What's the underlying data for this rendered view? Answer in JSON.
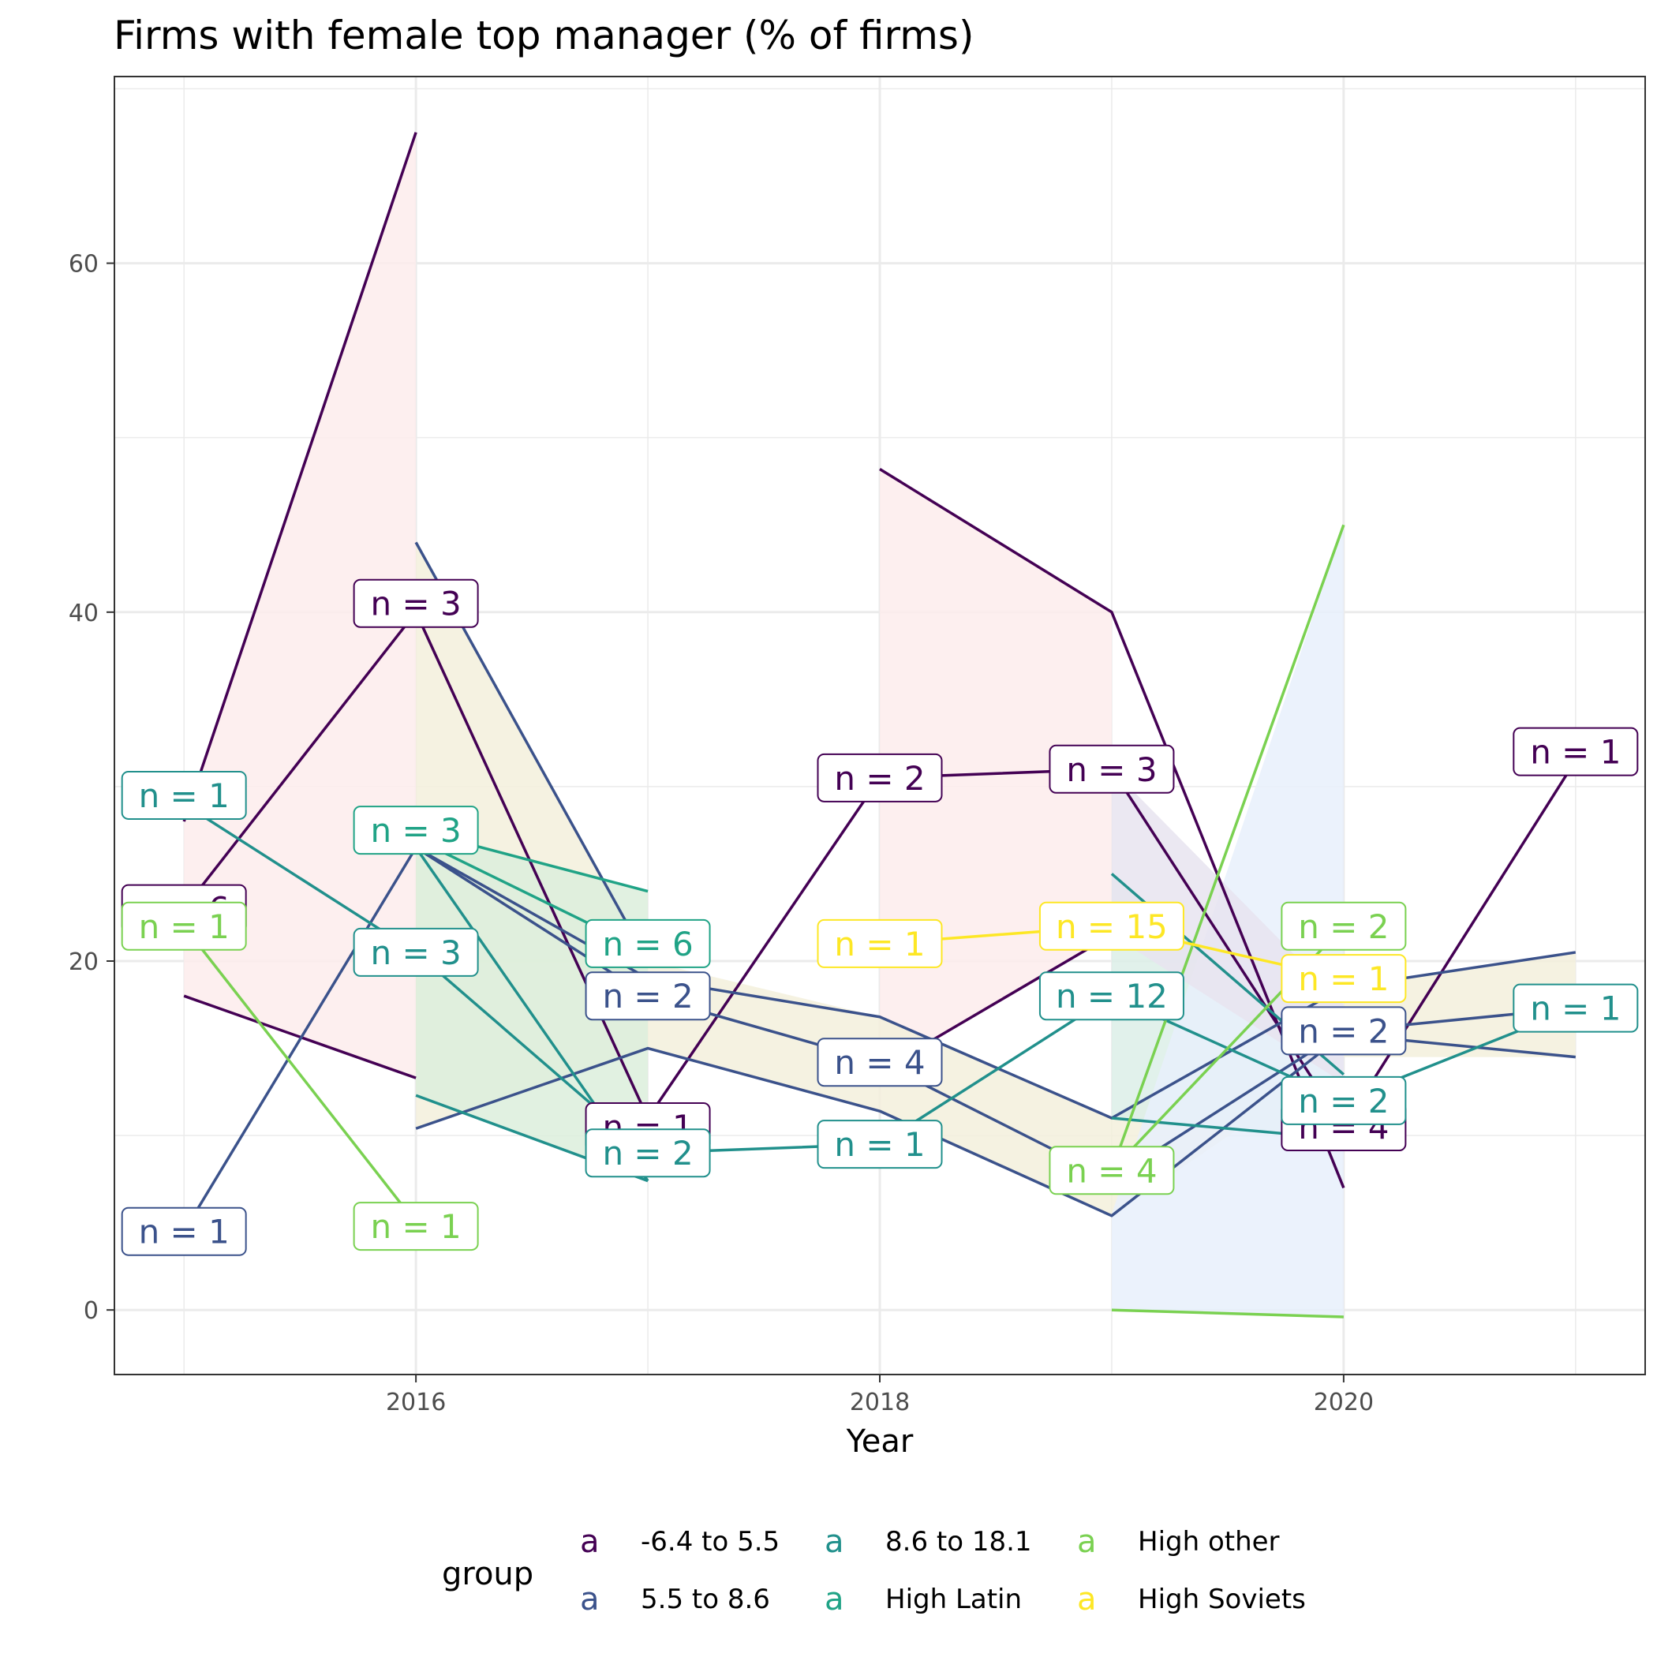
{
  "chart_data": {
    "type": "line",
    "title": "Firms with female top manager (% of firms)",
    "xlabel": "Year",
    "ylabel": "",
    "xlim": [
      2014.7,
      2021.3
    ],
    "ylim": [
      -3.7,
      70.7
    ],
    "x_ticks": [
      "2016",
      "2018",
      "2020"
    ],
    "y_ticks": [
      "0",
      "20",
      "40",
      "60"
    ],
    "grid": true,
    "legend": {
      "title": "group",
      "position": "bottom",
      "key_glyph": "a",
      "entries": [
        "-6.4 to 5.5",
        "5.5 to 8.6",
        "8.6 to 18.1",
        "High Latin",
        "High other",
        "High Soviets"
      ]
    },
    "ribbons": [
      {
        "group": "-6.4 to 5.5",
        "color": "#fdecec",
        "points": [
          [
            2015,
            18.0,
            28.0
          ],
          [
            2016,
            13.3,
            67.5
          ]
        ]
      },
      {
        "group": "-6.4 to 5.5",
        "color": "#fdecec",
        "points": [
          [
            2018,
            13.7,
            48.2
          ],
          [
            2019,
            21.5,
            40.0
          ]
        ]
      },
      {
        "group": "5.5 to 8.6",
        "color": "#f3f0dc",
        "points": [
          [
            2016,
            10.4,
            44.0
          ],
          [
            2017,
            15.0,
            20.0
          ],
          [
            2018,
            11.4,
            16.8
          ],
          [
            2019,
            5.4,
            11.0
          ],
          [
            2020,
            14.5,
            18.5
          ],
          [
            2021,
            14.5,
            20.5
          ]
        ]
      },
      {
        "group": "8.6 to 18.1",
        "color": "#dcefe8",
        "points": [
          [
            2019,
            11.0,
            25.0
          ],
          [
            2020,
            9.8,
            13.5
          ]
        ]
      },
      {
        "group": "High Latin",
        "color": "#dcefdc",
        "points": [
          [
            2016,
            12.3,
            27.5
          ],
          [
            2017,
            7.4,
            24.0
          ]
        ]
      },
      {
        "group": "High other",
        "color": "#e8f0fc",
        "points": [
          [
            2019,
            0.0,
            5.5
          ],
          [
            2020,
            -0.4,
            45.0
          ]
        ]
      },
      {
        "group": "-6.4 to 5.5",
        "color": "#e8e4f0",
        "points": [
          [
            2019,
            21.5,
            31.0
          ],
          [
            2020,
            13.0,
            17.5
          ]
        ]
      }
    ],
    "series": [
      {
        "name": "-6.4 to 5.5",
        "color": "#440154",
        "lines": [
          [
            [
              2015,
              18.0
            ],
            [
              2016,
              13.3
            ]
          ],
          [
            [
              2015,
              28.0
            ],
            [
              2016,
              67.5
            ]
          ],
          [
            [
              2015,
              23.0
            ],
            [
              2016,
              40.0
            ],
            [
              2017,
              11.0
            ],
            [
              2018,
              30.5
            ],
            [
              2019,
              31.0
            ],
            [
              2020,
              10.5
            ],
            [
              2021,
              31.5
            ]
          ],
          [
            [
              2018,
              48.2
            ],
            [
              2019,
              40.0
            ],
            [
              2020,
              7.0
            ]
          ],
          [
            [
              2018,
              13.7
            ],
            [
              2019,
              21.5
            ]
          ]
        ]
      },
      {
        "name": "5.5 to 8.6",
        "color": "#3b528b",
        "lines": [
          [
            [
              2015,
              4.5
            ],
            [
              2016,
              26.5
            ],
            [
              2017,
              19.0
            ],
            [
              2018,
              16.8
            ],
            [
              2019,
              11.0
            ],
            [
              2020,
              18.5
            ],
            [
              2021,
              20.5
            ]
          ],
          [
            [
              2016,
              44.0
            ],
            [
              2017,
              20.0
            ]
          ],
          [
            [
              2016,
              10.4
            ],
            [
              2017,
              15.0
            ],
            [
              2018,
              11.4
            ],
            [
              2019,
              5.4
            ],
            [
              2020,
              15.8
            ],
            [
              2021,
              14.5
            ]
          ],
          [
            [
              2016,
              26.5
            ],
            [
              2017,
              18.0
            ],
            [
              2018,
              14.2
            ],
            [
              2019,
              7.5
            ],
            [
              2020,
              16.0
            ],
            [
              2021,
              17.3
            ]
          ]
        ]
      },
      {
        "name": "8.6 to 18.1",
        "color": "#21908c",
        "lines": [
          [
            [
              2015,
              29.0
            ],
            [
              2016,
              20.5
            ],
            [
              2017,
              9.0
            ],
            [
              2018,
              9.5
            ],
            [
              2019,
              18.0
            ],
            [
              2020,
              12.0
            ],
            [
              2021,
              17.3
            ]
          ],
          [
            [
              2016,
              26.5
            ],
            [
              2017,
              7.4
            ]
          ],
          [
            [
              2016,
              12.3
            ],
            [
              2017,
              7.4
            ]
          ],
          [
            [
              2019,
              25.0
            ],
            [
              2020,
              13.5
            ]
          ],
          [
            [
              2019,
              11.0
            ],
            [
              2020,
              9.8
            ]
          ]
        ]
      },
      {
        "name": "High Latin",
        "color": "#20a386",
        "lines": [
          [
            [
              2016,
              27.5
            ],
            [
              2017,
              24.0
            ]
          ],
          [
            [
              2016,
              27.0
            ],
            [
              2017,
              20.5
            ]
          ]
        ]
      },
      {
        "name": "High other",
        "color": "#7ad151",
        "lines": [
          [
            [
              2015,
              22.0
            ],
            [
              2016,
              5.0
            ]
          ],
          [
            [
              2019,
              0.0
            ],
            [
              2020,
              -0.4
            ]
          ],
          [
            [
              2019,
              8.0
            ],
            [
              2020,
              45.0
            ]
          ],
          [
            [
              2019,
              8.0
            ],
            [
              2020,
              22.0
            ]
          ]
        ]
      },
      {
        "name": "High Soviets",
        "color": "#fde725",
        "lines": [
          [
            [
              2018,
              21.0
            ],
            [
              2019,
              22.0
            ],
            [
              2020,
              19.0
            ]
          ]
        ]
      }
    ],
    "labels": [
      {
        "x": 2015,
        "y": 23.0,
        "text": "n = 6",
        "group": "-6.4 to 5.5"
      },
      {
        "x": 2017,
        "y": 10.5,
        "text": "n = 1",
        "group": "-6.4 to 5.5"
      },
      {
        "x": 2020,
        "y": 10.5,
        "text": "n = 4",
        "group": "-6.4 to 5.5"
      },
      {
        "x": 2015,
        "y": 29.5,
        "text": "n = 1",
        "group": "8.6 to 18.1"
      },
      {
        "x": 2015,
        "y": 22.0,
        "text": "n = 1",
        "group": "High other"
      },
      {
        "x": 2015,
        "y": 4.5,
        "text": "n = 1",
        "group": "5.5 to 8.6"
      },
      {
        "x": 2016,
        "y": 40.5,
        "text": "n = 3",
        "group": "-6.4 to 5.5"
      },
      {
        "x": 2016,
        "y": 27.5,
        "text": "n = 3",
        "group": "High Latin"
      },
      {
        "x": 2016,
        "y": 20.5,
        "text": "n = 3",
        "group": "8.6 to 18.1"
      },
      {
        "x": 2016,
        "y": 4.8,
        "text": "n = 1",
        "group": "High other"
      },
      {
        "x": 2017,
        "y": 21.0,
        "text": "n = 6",
        "group": "High Latin"
      },
      {
        "x": 2017,
        "y": 18.0,
        "text": "n = 2",
        "group": "5.5 to 8.6"
      },
      {
        "x": 2017,
        "y": 9.0,
        "text": "n = 2",
        "group": "8.6 to 18.1"
      },
      {
        "x": 2018,
        "y": 30.5,
        "text": "n = 2",
        "group": "-6.4 to 5.5"
      },
      {
        "x": 2018,
        "y": 21.0,
        "text": "n = 1",
        "group": "High Soviets"
      },
      {
        "x": 2018,
        "y": 14.2,
        "text": "n = 4",
        "group": "5.5 to 8.6"
      },
      {
        "x": 2018,
        "y": 9.5,
        "text": "n = 1",
        "group": "8.6 to 18.1"
      },
      {
        "x": 2019,
        "y": 31.0,
        "text": "n = 3",
        "group": "-6.4 to 5.5"
      },
      {
        "x": 2019,
        "y": 22.0,
        "text": "n = 15",
        "group": "High Soviets"
      },
      {
        "x": 2019,
        "y": 18.0,
        "text": "n = 12",
        "group": "8.6 to 18.1"
      },
      {
        "x": 2019,
        "y": 8.0,
        "text": "n = 4",
        "group": "High other"
      },
      {
        "x": 2020,
        "y": 22.0,
        "text": "n = 2",
        "group": "High other"
      },
      {
        "x": 2020,
        "y": 19.0,
        "text": "n = 1",
        "group": "High Soviets"
      },
      {
        "x": 2020,
        "y": 16.0,
        "text": "n = 2",
        "group": "5.5 to 8.6"
      },
      {
        "x": 2020,
        "y": 12.0,
        "text": "n = 2",
        "group": "8.6 to 18.1"
      },
      {
        "x": 2021,
        "y": 32.0,
        "text": "n = 1",
        "group": "-6.4 to 5.5"
      },
      {
        "x": 2021,
        "y": 17.3,
        "text": "n = 1",
        "group": "8.6 to 18.1"
      }
    ]
  }
}
